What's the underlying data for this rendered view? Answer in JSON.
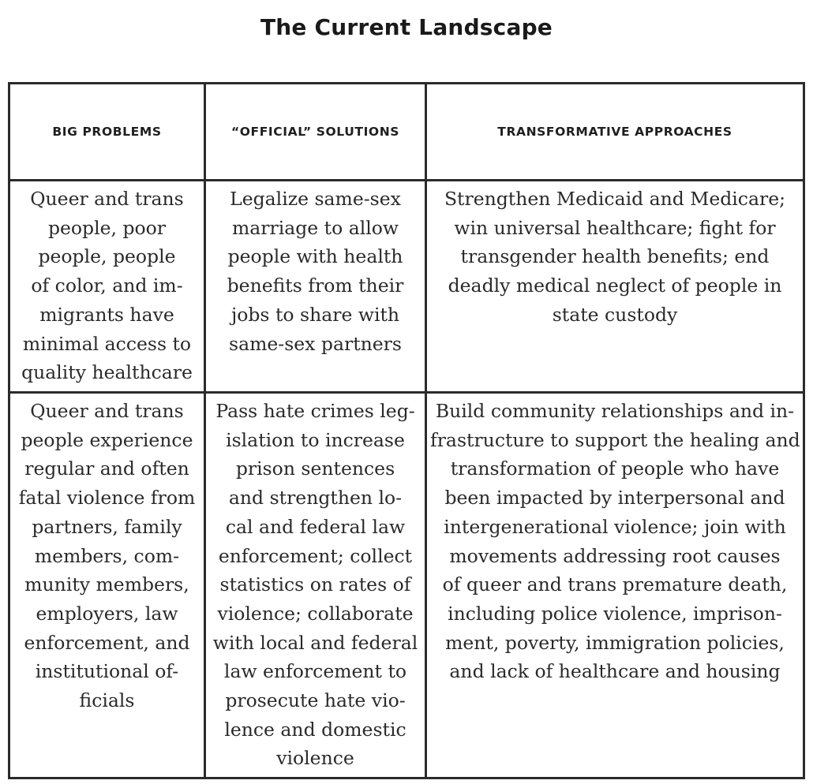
{
  "title": "The Current Landscape",
  "table": {
    "headers": [
      "Big Problems",
      "“Official” Solutions",
      "Transformative Approaches"
    ],
    "rows": [
      {
        "problem": [
          "Queer and trans",
          "people, poor",
          "people, people",
          "of color, and im-",
          "migrants have",
          "minimal access to",
          "quality healthcare"
        ],
        "official": [
          "Legalize same-sex",
          "marriage to allow",
          "people with health",
          "benefits from their",
          "jobs to share with",
          "same-sex partners"
        ],
        "transformative": [
          "Strengthen Medicaid and Medicare;",
          "win universal healthcare; fight for",
          "transgender health benefits; end",
          "deadly medical neglect of people in",
          "state custody"
        ]
      },
      {
        "problem": [
          "Queer and trans",
          "people experience",
          "regular and often",
          "fatal violence from",
          "partners, family",
          "members, com-",
          "munity members,",
          "employers, law",
          "enforcement, and",
          "institutional of-",
          "ficials"
        ],
        "official": [
          "Pass hate crimes leg-",
          "islation to increase",
          "prison sentences",
          "and strengthen lo-",
          "cal and federal law",
          "enforcement; collect",
          "statistics on rates of",
          "violence; collaborate",
          "with local and federal",
          "law enforcement to",
          "prosecute hate vio-",
          "lence and domestic",
          "violence"
        ],
        "transformative": [
          "Build community relationships and in-",
          "frastructure to support the healing and",
          "transformation of people who have",
          "been impacted by interpersonal and",
          "intergenerational violence; join with",
          "movements addressing root causes",
          "of queer and trans premature death,",
          "including police violence, imprison-",
          "ment, poverty, immigration policies,",
          "and lack of healthcare and housing"
        ]
      }
    ]
  }
}
